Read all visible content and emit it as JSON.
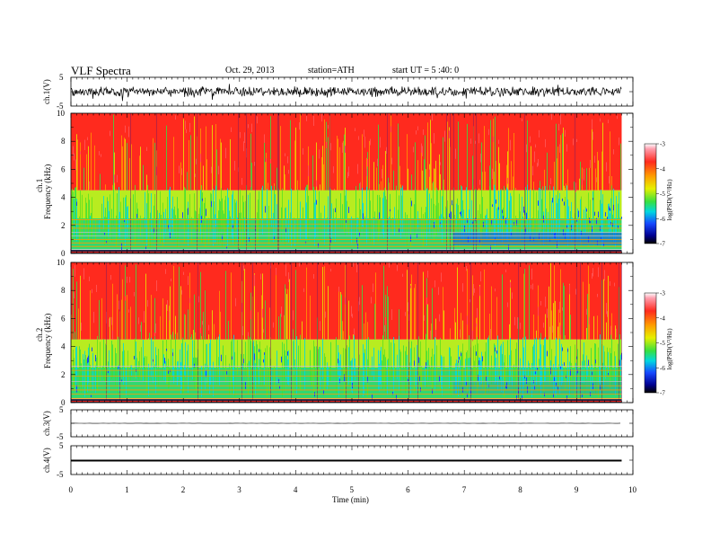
{
  "header": {
    "title": "VLF  Spectra",
    "date": "Oct. 29, 2013",
    "station": "station=ATH",
    "start_ut": "start  UT  =   5  :40: 0"
  },
  "chart_data": [
    {
      "type": "line",
      "panel": "ch1_waveform",
      "ylabel": "ch.1(V)",
      "ylim": [
        -5,
        5
      ],
      "y_ticks": [
        "5",
        "-5"
      ],
      "x_range_min": [
        0,
        9.8
      ],
      "approx_amplitude_V": 1.4,
      "baseline_V": 0,
      "color": "#000000"
    },
    {
      "type": "heatmap",
      "panel": "ch1_spectrogram",
      "ylabel_channel": "ch.1",
      "ylabel": "Frequency  (kHz)",
      "ylim": [
        0,
        10
      ],
      "y_ticks": [
        "0",
        "2",
        "4",
        "6",
        "8",
        "10"
      ],
      "x_range_min": [
        0,
        9.8
      ],
      "background_band_kHz": [
        [
          4.5,
          10,
          "red"
        ],
        [
          2.5,
          4.5,
          "yellow-green"
        ],
        [
          0.3,
          2.5,
          "green-cyan"
        ]
      ],
      "horizontal_lines_kHz": [
        0.25,
        0.5,
        0.75,
        1.0,
        1.25,
        1.5,
        1.8,
        2.1,
        2.4
      ],
      "regime_change_min": 6.8,
      "colorbar": {
        "label": "log(PSD(V²/Hz)",
        "ticks": [
          "-3",
          "-4",
          "-5",
          "-6",
          "-7"
        ],
        "range": [
          -7,
          -3
        ]
      }
    },
    {
      "type": "heatmap",
      "panel": "ch2_spectrogram",
      "ylabel_channel": "ch.2",
      "ylabel": "Frequency  (kHz)",
      "ylim": [
        0,
        10
      ],
      "y_ticks": [
        "0",
        "2",
        "4",
        "6",
        "8",
        "10"
      ],
      "x_range_min": [
        0,
        9.8
      ],
      "background_band_kHz": [
        [
          4.5,
          10,
          "red"
        ],
        [
          2.5,
          4.5,
          "yellow-green"
        ],
        [
          0.3,
          2.5,
          "green-cyan"
        ]
      ],
      "horizontal_lines_kHz": [
        0.3,
        0.6,
        0.9,
        1.2,
        1.5,
        1.9,
        2.3,
        2.6
      ],
      "regime_change_min": 6.8,
      "colorbar": {
        "label": "log(PSD(V²/Hz)",
        "ticks": [
          "-3",
          "-4",
          "-5",
          "-6",
          "-7"
        ],
        "range": [
          -7,
          -3
        ]
      }
    },
    {
      "type": "line",
      "panel": "ch3_waveform",
      "ylabel": "ch.3(V)",
      "ylim": [
        -5,
        5
      ],
      "y_ticks": [
        "5",
        "-5"
      ],
      "x_range_min": [
        0,
        9.8
      ],
      "baseline_V": 0,
      "approx_amplitude_V": 0.05,
      "color": "#000000"
    },
    {
      "type": "line",
      "panel": "ch4_waveform",
      "ylabel": "ch.4(V)",
      "ylim": [
        -5,
        5
      ],
      "y_ticks": [
        "5",
        "-5"
      ],
      "x_range_min": [
        0,
        9.8
      ],
      "baseline_V": 0,
      "approx_amplitude_V": 0.15,
      "color": "#000000"
    }
  ],
  "x_axis": {
    "label": "Time  (min)",
    "range": [
      0,
      10
    ],
    "ticks": [
      "0",
      "1",
      "2",
      "3",
      "4",
      "5",
      "6",
      "7",
      "8",
      "9",
      "10"
    ]
  },
  "colors": {
    "red": "#ff2a1e",
    "orange": "#ff9a00",
    "yellow": "#e6f000",
    "green": "#38e040",
    "cyan": "#00d8e0",
    "blue": "#1648ff",
    "navy": "#000090",
    "axis": "#000000"
  }
}
